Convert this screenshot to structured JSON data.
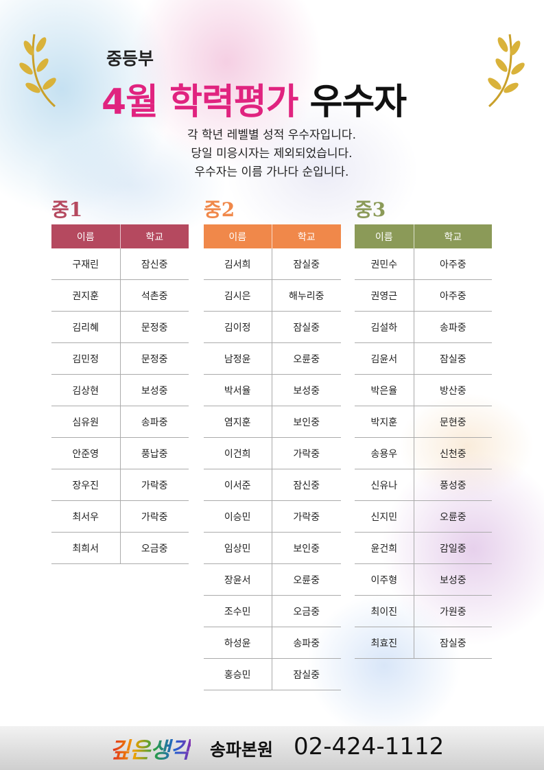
{
  "header": {
    "division": "중등부",
    "title_highlight": "4월 학력평가",
    "title_rest": "우수자"
  },
  "intro": [
    "각 학년 레벨별 성적 우수자입니다.",
    "당일 미응시자는 제외되었습니다.",
    "우수자는 이름 가나다 순입니다."
  ],
  "groups": [
    {
      "name": "중1",
      "color": "#b5495f",
      "columns": [
        "이름",
        "학교"
      ],
      "rows": [
        [
          "구재린",
          "잠신중"
        ],
        [
          "권지훈",
          "석촌중"
        ],
        [
          "김리혜",
          "문정중"
        ],
        [
          "김민정",
          "문정중"
        ],
        [
          "김상현",
          "보성중"
        ],
        [
          "심유원",
          "송파중"
        ],
        [
          "안준영",
          "풍납중"
        ],
        [
          "장우진",
          "가락중"
        ],
        [
          "최서우",
          "가락중"
        ],
        [
          "최희서",
          "오금중"
        ]
      ]
    },
    {
      "name": "중2",
      "color": "#f0884a",
      "columns": [
        "이름",
        "학교"
      ],
      "rows": [
        [
          "김서희",
          "잠실중"
        ],
        [
          "김시은",
          "해누리중"
        ],
        [
          "김이정",
          "잠실중"
        ],
        [
          "남정윤",
          "오륜중"
        ],
        [
          "박서율",
          "보성중"
        ],
        [
          "염지훈",
          "보인중"
        ],
        [
          "이건희",
          "가락중"
        ],
        [
          "이서준",
          "잠신중"
        ],
        [
          "이승민",
          "가락중"
        ],
        [
          "임상민",
          "보인중"
        ],
        [
          "장윤서",
          "오륜중"
        ],
        [
          "조수민",
          "오금중"
        ],
        [
          "하성윤",
          "송파중"
        ],
        [
          "홍승민",
          "잠실중"
        ]
      ]
    },
    {
      "name": "중3",
      "color": "#8b9a58",
      "columns": [
        "이름",
        "학교"
      ],
      "rows": [
        [
          "권민수",
          "아주중"
        ],
        [
          "권영근",
          "아주중"
        ],
        [
          "김설하",
          "송파중"
        ],
        [
          "김윤서",
          "잠실중"
        ],
        [
          "박은율",
          "방산중"
        ],
        [
          "박지훈",
          "문현중"
        ],
        [
          "송용우",
          "신천중"
        ],
        [
          "신유나",
          "풍성중"
        ],
        [
          "신지민",
          "오륜중"
        ],
        [
          "윤건희",
          "감일중"
        ],
        [
          "이주형",
          "보성중"
        ],
        [
          "최이진",
          "가원중"
        ],
        [
          "최효진",
          "잠실중"
        ]
      ]
    }
  ],
  "footer": {
    "brand": "깊은생각",
    "branch": "송파본원",
    "phone": "02-424-1112"
  }
}
